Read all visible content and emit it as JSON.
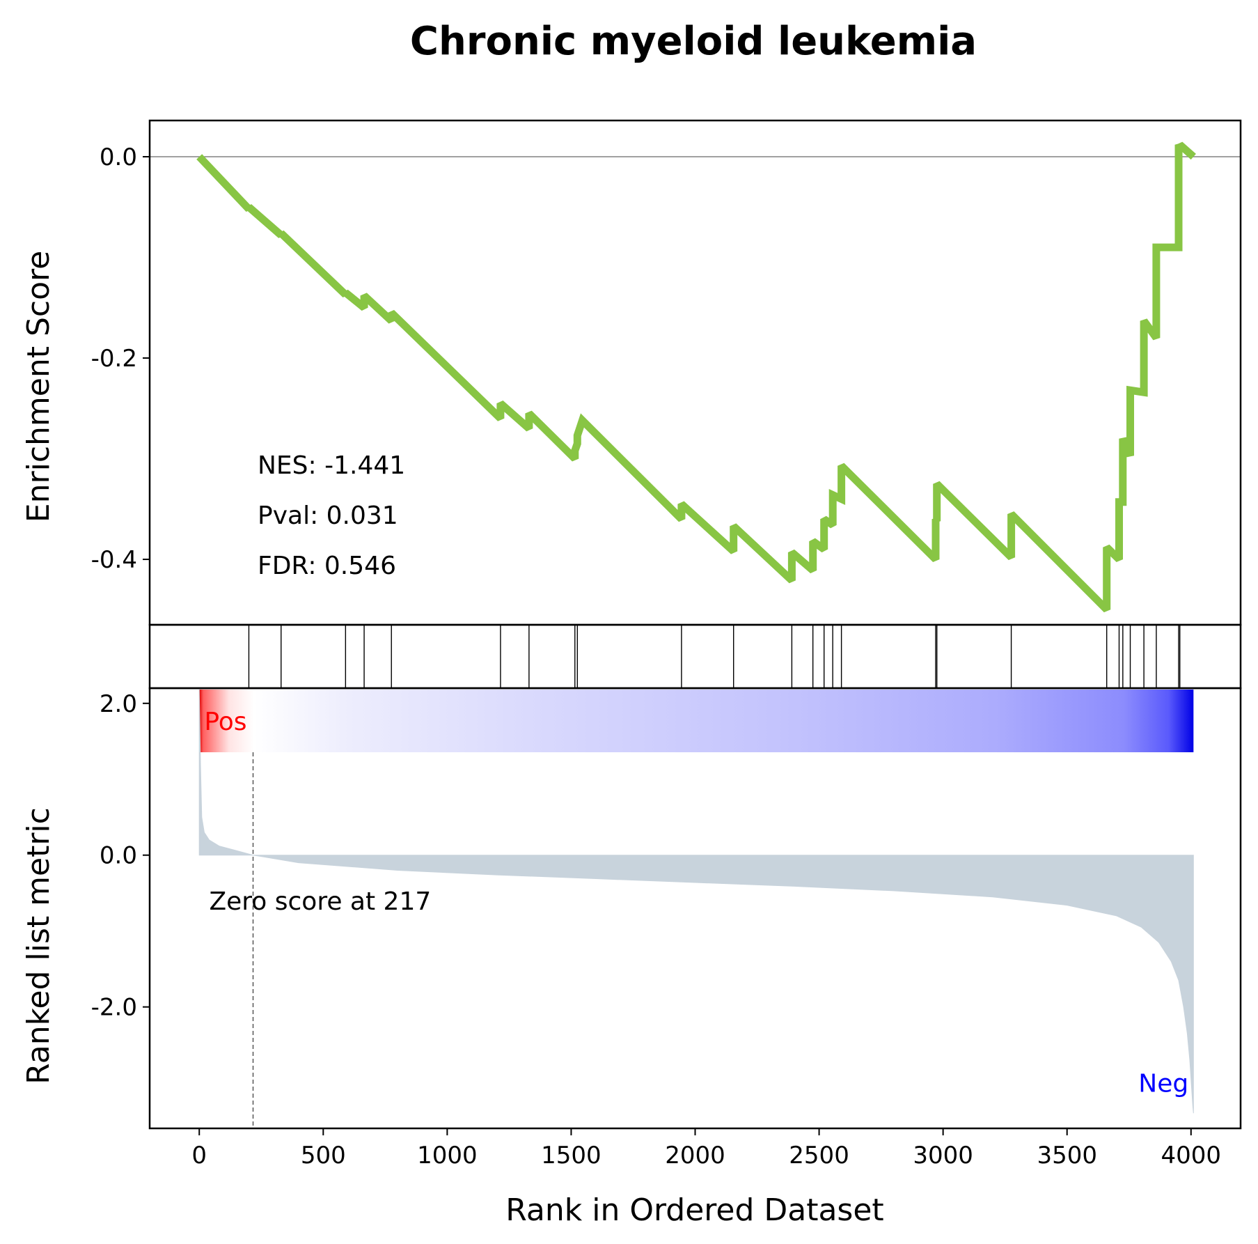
{
  "chart_data": {
    "type": "line",
    "title": "Chronic myeloid leukemia",
    "xlabel": "Rank in Ordered Dataset",
    "xlim": [
      -200,
      4200
    ],
    "x_ticks": [
      0,
      500,
      1000,
      1500,
      2000,
      2500,
      3000,
      3500,
      4000
    ],
    "x_tick_labels": [
      "0",
      "500",
      "1000",
      "1500",
      "2000",
      "2500",
      "3000",
      "3500",
      "4000"
    ],
    "enrichment": {
      "ylabel": "Enrichment Score",
      "ylim": [
        -0.465,
        0.036
      ],
      "y_ticks": [
        0.0,
        -0.2,
        -0.4
      ],
      "y_tick_labels": [
        "0.0",
        "-0.2",
        "-0.4"
      ],
      "line_color": "#88c544",
      "zero_line_color": "#808080",
      "stats": {
        "nes": "NES: -1.441",
        "pval": "Pval: 0.031",
        "fdr": "FDR: 0.546"
      },
      "x": [
        0,
        200,
        200,
        330,
        330,
        590,
        590,
        665,
        665,
        775,
        775,
        1215,
        1215,
        1330,
        1330,
        1515,
        1515,
        1525,
        1525,
        1545,
        1945,
        1945,
        2155,
        2155,
        2390,
        2390,
        2475,
        2475,
        2520,
        2520,
        2555,
        2555,
        2590,
        2590,
        2970,
        2970,
        2975,
        2975,
        3275,
        3275,
        3660,
        3660,
        3710,
        3710,
        3725,
        3725,
        3755,
        3755,
        3810,
        3810,
        3860,
        3860,
        3950,
        3950,
        3955,
        3955,
        4010
      ],
      "y": [
        0.0,
        -0.052,
        -0.05,
        -0.078,
        -0.076,
        -0.137,
        -0.135,
        -0.15,
        -0.138,
        -0.163,
        -0.155,
        -0.26,
        -0.245,
        -0.27,
        -0.255,
        -0.3,
        -0.292,
        -0.285,
        -0.277,
        -0.262,
        -0.36,
        -0.345,
        -0.392,
        -0.367,
        -0.421,
        -0.393,
        -0.411,
        -0.382,
        -0.39,
        -0.36,
        -0.366,
        -0.336,
        -0.34,
        -0.307,
        -0.4,
        -0.36,
        -0.362,
        -0.325,
        -0.398,
        -0.355,
        -0.45,
        -0.388,
        -0.4,
        -0.343,
        -0.343,
        -0.28,
        -0.297,
        -0.232,
        -0.234,
        -0.163,
        -0.18,
        -0.09,
        -0.09,
        0.012,
        0.01,
        0.012,
        0.0
      ]
    },
    "hits": [
      200,
      330,
      590,
      665,
      775,
      1215,
      1330,
      1515,
      1525,
      1945,
      2155,
      2390,
      2475,
      2520,
      2555,
      2590,
      2970,
      2975,
      3275,
      3660,
      3710,
      3725,
      3755,
      3810,
      3860,
      3950,
      3955
    ],
    "heatmap": {
      "x_range": [
        0,
        4010
      ],
      "stops": [
        {
          "pos": 0.0,
          "color": "#dd0000"
        },
        {
          "pos": 0.004,
          "color": "#ff6060"
        },
        {
          "pos": 0.03,
          "color": "#ffe4e4"
        },
        {
          "pos": 0.055,
          "color": "#ffffff"
        },
        {
          "pos": 0.15,
          "color": "#ededfd"
        },
        {
          "pos": 0.35,
          "color": "#d8d8fd"
        },
        {
          "pos": 0.6,
          "color": "#c2c2fd"
        },
        {
          "pos": 0.8,
          "color": "#acacfd"
        },
        {
          "pos": 0.93,
          "color": "#8c8cfd"
        },
        {
          "pos": 0.975,
          "color": "#5a5afc"
        },
        {
          "pos": 1.0,
          "color": "#0000e6"
        }
      ]
    },
    "ranked_metric": {
      "ylabel": "Ranked list metric",
      "ylim": [
        -3.6,
        2.2
      ],
      "y_ticks": [
        2.0,
        0.0,
        -2.0
      ],
      "y_tick_labels": [
        "2.0",
        "0.0",
        "-2.0"
      ],
      "fill_color": "#c8d3dc",
      "x": [
        0,
        5,
        10,
        20,
        40,
        80,
        150,
        217,
        400,
        800,
        1200,
        1600,
        2000,
        2400,
        2800,
        3200,
        3500,
        3700,
        3800,
        3870,
        3920,
        3950,
        3970,
        3985,
        3995,
        4002,
        4007,
        4010
      ],
      "y": [
        2.2,
        1.2,
        0.5,
        0.3,
        0.2,
        0.12,
        0.06,
        0.0,
        -0.1,
        -0.2,
        -0.26,
        -0.31,
        -0.36,
        -0.41,
        -0.47,
        -0.55,
        -0.66,
        -0.8,
        -0.95,
        -1.15,
        -1.4,
        -1.65,
        -2.0,
        -2.35,
        -2.7,
        -3.05,
        -3.3,
        -3.4
      ],
      "zero_score_rank": 217,
      "zero_score_text": "Zero score at 217",
      "pos_label": "Pos",
      "neg_label": "Neg",
      "pos_color": "#ff0000",
      "neg_color": "#0000ff"
    }
  }
}
